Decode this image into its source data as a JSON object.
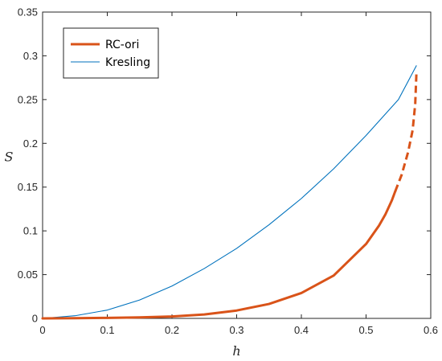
{
  "chart_data": {
    "type": "line",
    "title": "",
    "xlabel": "h",
    "ylabel": "S",
    "xlim": [
      0,
      0.6
    ],
    "ylim": [
      0,
      0.35
    ],
    "xticks": [
      0,
      0.1,
      0.2,
      0.3,
      0.4,
      0.5,
      0.6
    ],
    "xtick_labels": [
      "0",
      "0.1",
      "0.2",
      "0.3",
      "0.4",
      "0.5",
      "0.6"
    ],
    "yticks": [
      0,
      0.05,
      0.1,
      0.15,
      0.2,
      0.25,
      0.3,
      0.35
    ],
    "ytick_labels": [
      "0",
      "0.05",
      "0.1",
      "0.15",
      "0.2",
      "0.25",
      "0.3",
      "0.35"
    ],
    "grid": false,
    "legend_position": "top-left",
    "series": [
      {
        "name": "RC-ori",
        "color": "#D95319",
        "style": "thick solid, dashed near the end",
        "x": [
          0,
          0.05,
          0.1,
          0.15,
          0.2,
          0.25,
          0.3,
          0.35,
          0.4,
          0.45,
          0.5,
          0.52,
          0.53,
          0.54,
          0.545
        ],
        "y": [
          0,
          0.0002,
          0.0006,
          0.0012,
          0.0022,
          0.0045,
          0.009,
          0.0165,
          0.029,
          0.049,
          0.085,
          0.106,
          0.119,
          0.135,
          0.145
        ],
        "dashed_x": [
          0.545,
          0.555,
          0.565,
          0.572,
          0.576,
          0.578
        ],
        "dashed_y": [
          0.145,
          0.164,
          0.19,
          0.215,
          0.245,
          0.283
        ]
      },
      {
        "name": "Kresling",
        "color": "#0072BD",
        "style": "thin solid",
        "x": [
          0,
          0.05,
          0.1,
          0.15,
          0.2,
          0.25,
          0.3,
          0.35,
          0.4,
          0.45,
          0.5,
          0.55,
          0.578
        ],
        "y": [
          0,
          0.003,
          0.0095,
          0.021,
          0.037,
          0.057,
          0.08,
          0.107,
          0.137,
          0.171,
          0.209,
          0.25,
          0.289
        ]
      }
    ]
  }
}
